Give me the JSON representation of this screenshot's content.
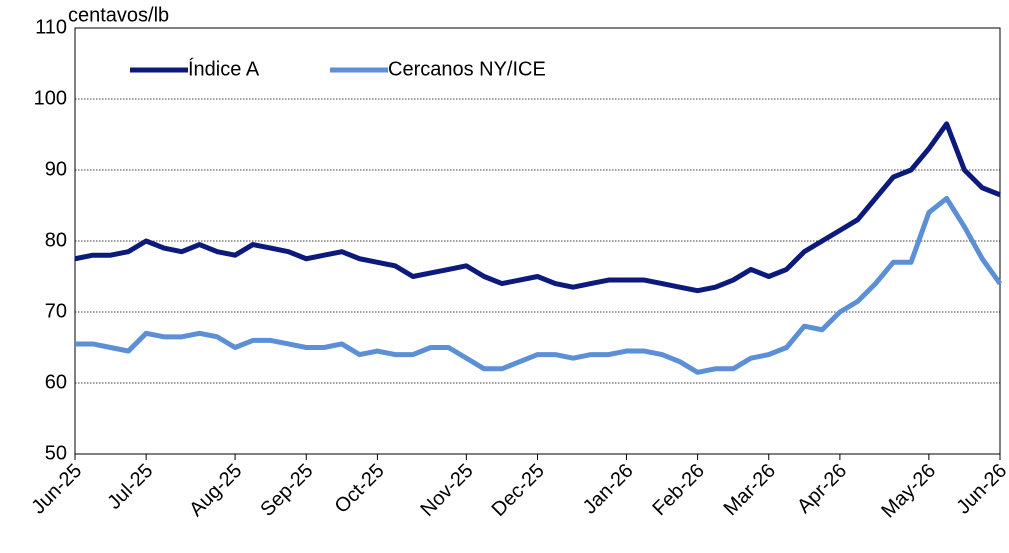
{
  "chart_data": {
    "type": "line",
    "y_label": "centavos/lb",
    "categories": [
      "Jun-25",
      null,
      null,
      null,
      "Jul-25",
      null,
      null,
      null,
      null,
      "Aug-25",
      null,
      null,
      null,
      "Sep-25",
      null,
      null,
      null,
      "Oct-25",
      null,
      null,
      null,
      null,
      "Nov-25",
      null,
      null,
      null,
      "Dec-25",
      null,
      null,
      null,
      null,
      "Jan-26",
      null,
      null,
      null,
      "Feb-26",
      null,
      null,
      null,
      "Mar-26",
      null,
      null,
      null,
      "Apr-26",
      null,
      null,
      null,
      null,
      "May-26",
      null,
      null,
      null,
      "Jun-26"
    ],
    "series": [
      {
        "name": "Índice A",
        "color": "#0c1a7c",
        "values": [
          77.5,
          78,
          78,
          78.5,
          80,
          79,
          78.5,
          79.5,
          78.5,
          78,
          79.5,
          79,
          78.5,
          77.5,
          78,
          78.5,
          77.5,
          77,
          76.5,
          75,
          75.5,
          76,
          76.5,
          75,
          74,
          74.5,
          75,
          74,
          73.5,
          74,
          74.5,
          74.5,
          74.5,
          74,
          73.5,
          73,
          73.5,
          74.5,
          76,
          75,
          76,
          78.5,
          80,
          81.5,
          83,
          86,
          89,
          90,
          93,
          96.5,
          90,
          87.5,
          86.5
        ]
      },
      {
        "name": "Cercanos NY/ICE",
        "color": "#5b8fd6",
        "values": [
          65.5,
          65.5,
          65,
          64.5,
          67,
          66.5,
          66.5,
          67,
          66.5,
          65,
          66,
          66,
          65.5,
          65,
          65,
          65.5,
          64,
          64.5,
          64,
          64,
          65,
          65,
          63.5,
          62,
          62,
          63,
          64,
          64,
          63.5,
          64,
          64,
          64.5,
          64.5,
          64,
          63,
          61.5,
          62,
          62,
          63.5,
          64,
          65,
          68,
          67.5,
          70,
          71.5,
          74,
          77,
          77,
          84,
          86,
          82,
          77.5,
          74
        ]
      }
    ],
    "ylim": [
      50,
      110
    ],
    "yticks": [
      50,
      60,
      70,
      80,
      90,
      100,
      110
    ],
    "grid": true,
    "legend": "top-left"
  }
}
